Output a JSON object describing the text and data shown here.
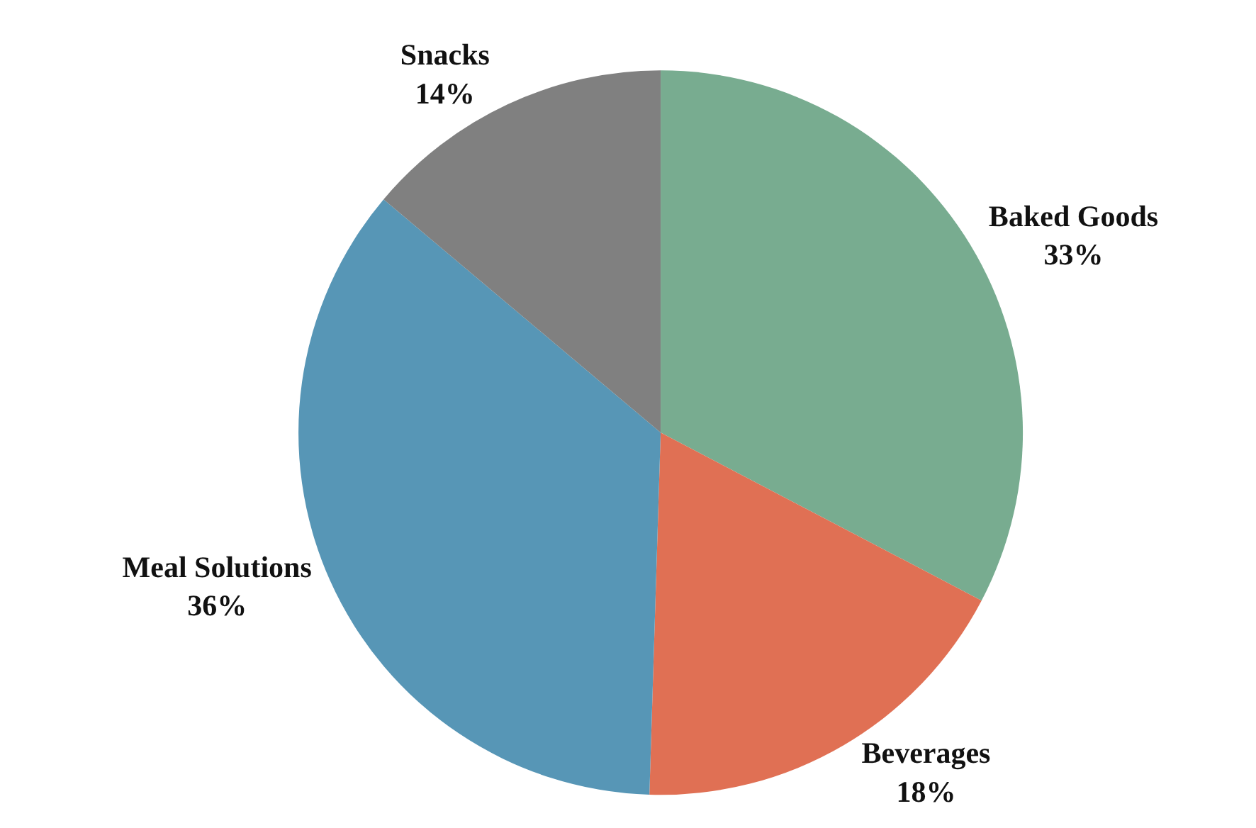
{
  "chart_data": {
    "type": "pie",
    "categories": [
      "Baked Goods",
      "Beverages",
      "Meal Solutions",
      "Snacks"
    ],
    "values": [
      33,
      18,
      36,
      14
    ],
    "value_labels": [
      "33%",
      "18%",
      "36%",
      "14%"
    ],
    "colors": [
      "#78ac90",
      "#e07054",
      "#5796b6",
      "#808080"
    ],
    "legend": false
  }
}
